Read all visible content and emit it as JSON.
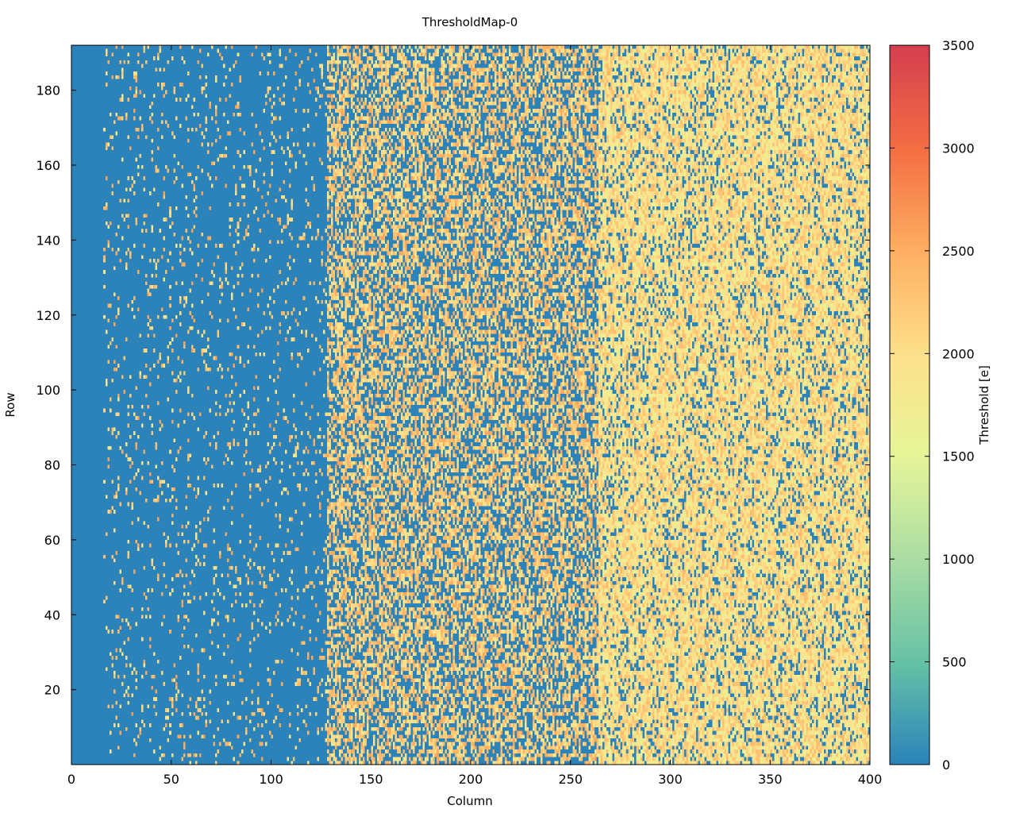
{
  "chart_data": {
    "type": "heatmap",
    "title": "ThresholdMap-0",
    "xlabel": "Column",
    "ylabel": "Row",
    "xlim": [
      0,
      400
    ],
    "ylim": [
      0,
      192
    ],
    "x_ticks": [
      0,
      50,
      100,
      150,
      200,
      250,
      300,
      350,
      400
    ],
    "y_ticks": [
      20,
      40,
      60,
      80,
      100,
      120,
      140,
      160,
      180
    ],
    "colorbar": {
      "label": "Threshold [e]",
      "range": [
        0,
        3500
      ],
      "ticks": [
        0,
        500,
        1000,
        1500,
        2000,
        2500,
        3000,
        3500
      ],
      "colormap": [
        "#2b83ba",
        "#66c2a5",
        "#abdda4",
        "#e6f598",
        "#fee08b",
        "#fdae61",
        "#f46d43",
        "#d53e4f"
      ]
    },
    "grid": false,
    "regions": [
      {
        "columns": [
          0,
          16
        ],
        "description_value_dominant": 0,
        "nonzero_fraction": 0.0,
        "typical_threshold": 0
      },
      {
        "columns": [
          16,
          128
        ],
        "description_value_dominant": 0,
        "nonzero_fraction": 0.08,
        "typical_threshold": 2200
      },
      {
        "columns": [
          128,
          264
        ],
        "description_value_dominant": 2200,
        "nonzero_fraction": 0.55,
        "typical_threshold": 2200
      },
      {
        "columns": [
          264,
          400
        ],
        "description_value_dominant": 2000,
        "nonzero_fraction": 0.82,
        "typical_threshold": 2000
      }
    ]
  }
}
